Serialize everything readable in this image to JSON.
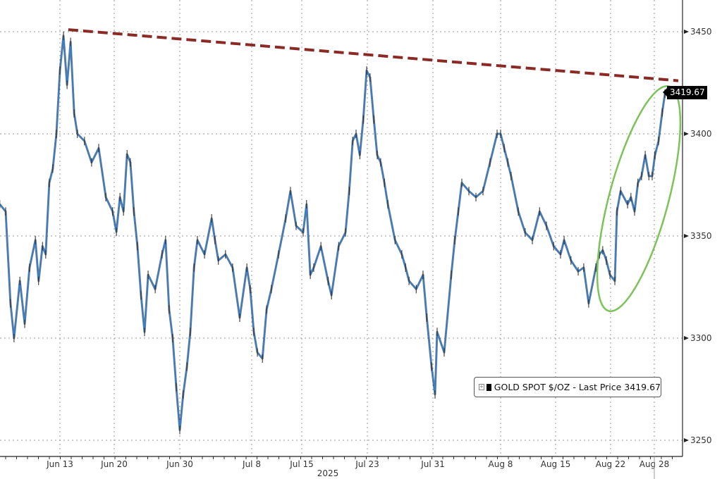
{
  "chart_data": {
    "type": "line",
    "title": "",
    "xlabel": "2025",
    "ylabel": "",
    "ylim": [
      3242,
      3465.5
    ],
    "yticks": [
      3250,
      3300,
      3350,
      3400,
      3450
    ],
    "xticks": [
      {
        "date": "2025-06-13",
        "label": "Jun 13"
      },
      {
        "date": "2025-06-20",
        "label": "Jun 20"
      },
      {
        "date": "2025-06-30",
        "label": "Jun 30"
      },
      {
        "date": "2025-07-08",
        "label": "Jul 8"
      },
      {
        "date": "2025-07-15",
        "label": "Jul 15"
      },
      {
        "date": "2025-07-23",
        "label": "Jul 23"
      },
      {
        "date": "2025-07-31",
        "label": "Jul 31"
      },
      {
        "date": "2025-08-08",
        "label": "Aug 8"
      },
      {
        "date": "2025-08-15",
        "label": "Aug 15"
      },
      {
        "date": "2025-08-22",
        "label": "Aug 22"
      },
      {
        "date": "2025-08-28",
        "label": "Aug 28"
      }
    ],
    "grid": true,
    "legend_placement": "bottom-right",
    "series": [
      {
        "name": "GOLD SPOT $/OZ",
        "color": "#2b7fd6",
        "points": [
          [
            "2025-06-05T06:00",
            3365.5
          ],
          [
            "2025-06-06T00:00",
            3362
          ],
          [
            "2025-06-06T15:00",
            3317
          ],
          [
            "2025-06-07T02:00",
            3300
          ],
          [
            "2025-06-07T20:00",
            3328
          ],
          [
            "2025-06-08T11:00",
            3307
          ],
          [
            "2025-06-09T02:00",
            3334.5
          ],
          [
            "2025-06-09T20:00",
            3348
          ],
          [
            "2025-06-10T06:00",
            3328
          ],
          [
            "2025-06-10T18:00",
            3345
          ],
          [
            "2025-06-11T04:00",
            3341
          ],
          [
            "2025-06-11T15:00",
            3376
          ],
          [
            "2025-06-12T02:00",
            3383
          ],
          [
            "2025-06-12T13:00",
            3400
          ],
          [
            "2025-06-13T00:00",
            3431
          ],
          [
            "2025-06-13T11:00",
            3448
          ],
          [
            "2025-06-13T22:00",
            3424
          ],
          [
            "2025-06-14T09:00",
            3445
          ],
          [
            "2025-06-14T20:00",
            3410
          ],
          [
            "2025-06-15T06:00",
            3400
          ],
          [
            "2025-06-16T04:00",
            3396.5
          ],
          [
            "2025-06-17T02:00",
            3386
          ],
          [
            "2025-06-18T00:00",
            3393
          ],
          [
            "2025-06-18T22:00",
            3369
          ],
          [
            "2025-06-19T19:00",
            3362
          ],
          [
            "2025-06-20T08:00",
            3352
          ],
          [
            "2025-06-20T21:00",
            3369
          ],
          [
            "2025-06-21T10:00",
            3362
          ],
          [
            "2025-06-21T23:00",
            3390
          ],
          [
            "2025-06-22T11:00",
            3386
          ],
          [
            "2025-06-23T00:00",
            3362
          ],
          [
            "2025-06-23T13:00",
            3345
          ],
          [
            "2025-06-24T02:00",
            3321
          ],
          [
            "2025-06-24T15:00",
            3303
          ],
          [
            "2025-06-25T04:00",
            3331
          ],
          [
            "2025-06-26T06:00",
            3324
          ],
          [
            "2025-06-27T07:00",
            3341
          ],
          [
            "2025-06-27T20:00",
            3348
          ],
          [
            "2025-06-28T09:00",
            3314
          ],
          [
            "2025-06-28T22:00",
            3300
          ],
          [
            "2025-06-29T11:00",
            3276
          ],
          [
            "2025-06-30T00:00",
            3255
          ],
          [
            "2025-06-30T09:00",
            3272.4
          ],
          [
            "2025-06-30T19:00",
            3286
          ],
          [
            "2025-07-01T04:00",
            3303
          ],
          [
            "2025-07-01T14:00",
            3334.5
          ],
          [
            "2025-07-01T23:00",
            3348
          ],
          [
            "2025-07-02T18:00",
            3341
          ],
          [
            "2025-07-03T13:00",
            3358.6
          ],
          [
            "2025-07-03T22:00",
            3348
          ],
          [
            "2025-07-04T07:00",
            3338
          ],
          [
            "2025-07-05T02:00",
            3341
          ],
          [
            "2025-07-05T21:00",
            3334.5
          ],
          [
            "2025-07-06T16:00",
            3310
          ],
          [
            "2025-07-07T11:00",
            3334.5
          ],
          [
            "2025-07-07T20:00",
            3324
          ],
          [
            "2025-07-08T07:00",
            3303
          ],
          [
            "2025-07-08T19:00",
            3293
          ],
          [
            "2025-07-09T12:00",
            3290
          ],
          [
            "2025-07-10T02:00",
            3314
          ],
          [
            "2025-07-10T18:00",
            3324
          ],
          [
            "2025-07-11T18:00",
            3341
          ],
          [
            "2025-07-12T18:00",
            3358.6
          ],
          [
            "2025-07-13T10:00",
            3372
          ],
          [
            "2025-07-14T05:00",
            3355
          ],
          [
            "2025-07-15T04:00",
            3351.7
          ],
          [
            "2025-07-15T14:00",
            3365.5
          ],
          [
            "2025-07-16T01:00",
            3331
          ],
          [
            "2025-07-16T11:00",
            3334.5
          ],
          [
            "2025-07-17T08:00",
            3345
          ],
          [
            "2025-07-18T05:00",
            3328
          ],
          [
            "2025-07-18T15:00",
            3321
          ],
          [
            "2025-07-19T12:00",
            3345
          ],
          [
            "2025-07-20T08:00",
            3351.7
          ],
          [
            "2025-07-20T19:00",
            3372
          ],
          [
            "2025-07-21T05:00",
            3396.5
          ],
          [
            "2025-07-21T15:00",
            3400
          ],
          [
            "2025-07-22T02:00",
            3389.6
          ],
          [
            "2025-07-22T12:00",
            3407
          ],
          [
            "2025-07-22T22:00",
            3431
          ],
          [
            "2025-07-23T08:00",
            3427.6
          ],
          [
            "2025-07-23T19:00",
            3407
          ],
          [
            "2025-07-24T05:00",
            3389.6
          ],
          [
            "2025-07-24T15:00",
            3386
          ],
          [
            "2025-07-25T02:00",
            3376
          ],
          [
            "2025-07-25T12:00",
            3365.5
          ],
          [
            "2025-07-26T09:00",
            3348
          ],
          [
            "2025-07-27T05:00",
            3341
          ],
          [
            "2025-07-27T16:00",
            3334.5
          ],
          [
            "2025-07-28T02:00",
            3328
          ],
          [
            "2025-07-28T23:00",
            3324
          ],
          [
            "2025-07-29T19:00",
            3331
          ],
          [
            "2025-07-30T06:00",
            3310
          ],
          [
            "2025-07-30T20:00",
            3286
          ],
          [
            "2025-07-31T06:00",
            3272.4
          ],
          [
            "2025-07-31T12:00",
            3303
          ],
          [
            "2025-08-01T08:00",
            3293
          ],
          [
            "2025-08-02T04:00",
            3331
          ],
          [
            "2025-08-02T14:00",
            3348
          ],
          [
            "2025-08-03T00:00",
            3362
          ],
          [
            "2025-08-03T10:00",
            3376
          ],
          [
            "2025-08-04T06:00",
            3372
          ],
          [
            "2025-08-05T02:00",
            3369
          ],
          [
            "2025-08-05T22:00",
            3372
          ],
          [
            "2025-08-06T18:00",
            3386
          ],
          [
            "2025-08-07T14:00",
            3400
          ],
          [
            "2025-08-08T00:00",
            3400
          ],
          [
            "2025-08-08T11:00",
            3393
          ],
          [
            "2025-08-08T22:00",
            3386
          ],
          [
            "2025-08-09T08:00",
            3379.3
          ],
          [
            "2025-08-10T06:00",
            3362
          ],
          [
            "2025-08-11T03:00",
            3351.7
          ],
          [
            "2025-08-12T01:00",
            3348
          ],
          [
            "2025-08-12T23:00",
            3362
          ],
          [
            "2025-08-13T20:00",
            3355
          ],
          [
            "2025-08-14T18:00",
            3345
          ],
          [
            "2025-08-15T15:00",
            3341
          ],
          [
            "2025-08-16T02:00",
            3348
          ],
          [
            "2025-08-16T23:00",
            3338
          ],
          [
            "2025-08-17T21:00",
            3332.7
          ],
          [
            "2025-08-18T14:00",
            3334.5
          ],
          [
            "2025-08-19T05:00",
            3317
          ],
          [
            "2025-08-20T03:00",
            3334.5
          ],
          [
            "2025-08-20T14:00",
            3341
          ],
          [
            "2025-08-21T00:00",
            3343
          ],
          [
            "2025-08-21T11:00",
            3338
          ],
          [
            "2025-08-21T22:00",
            3331
          ],
          [
            "2025-08-22T14:00",
            3328
          ],
          [
            "2025-08-22T21:00",
            3362
          ],
          [
            "2025-08-23T09:00",
            3372
          ],
          [
            "2025-08-24T08:00",
            3365.5
          ],
          [
            "2025-08-24T19:00",
            3369
          ],
          [
            "2025-08-25T07:00",
            3362
          ],
          [
            "2025-08-25T18:00",
            3376
          ],
          [
            "2025-08-26T06:00",
            3379.3
          ],
          [
            "2025-08-26T18:00",
            3389.6
          ],
          [
            "2025-08-27T06:00",
            3379.3
          ],
          [
            "2025-08-27T17:00",
            3379.3
          ],
          [
            "2025-08-28T02:00",
            3389.6
          ],
          [
            "2025-08-28T14:00",
            3396.5
          ],
          [
            "2025-08-29T02:00",
            3410.5
          ],
          [
            "2025-08-29T11:00",
            3419.67
          ]
        ]
      }
    ],
    "trendline": {
      "color": "#8b2a24",
      "style": "dashed",
      "points": [
        [
          "2025-06-14T02:00",
          3451
        ],
        [
          "2025-08-31T07:00",
          3426
        ]
      ]
    },
    "highlight_color": "#7cc35a",
    "last_price": "3419.67",
    "legend": {
      "label": "GOLD SPOT $/OZ - Last Price 3419.67"
    }
  }
}
